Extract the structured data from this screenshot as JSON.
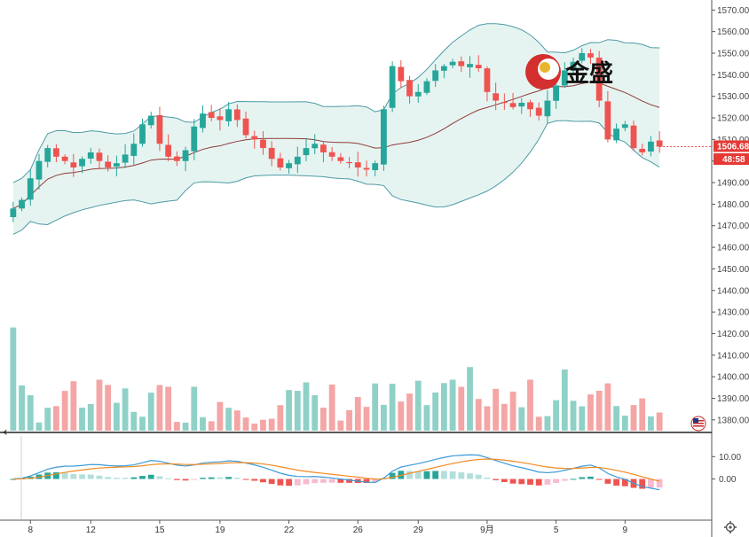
{
  "watermark": {
    "text": "金盛"
  },
  "chart_data": {
    "type": "candlestick",
    "price_axis": {
      "ticks": [
        "1570.00",
        "1560.00",
        "1550.00",
        "1540.00",
        "1530.00",
        "1520.00",
        "1510.00",
        "1500.00",
        "1490.00",
        "1480.00",
        "1470.00",
        "1460.00",
        "1450.00",
        "1440.00",
        "1430.00",
        "1420.00",
        "1410.00",
        "1400.00",
        "1390.00",
        "1380.00"
      ],
      "range": [
        1375,
        1573
      ]
    },
    "macd_axis": {
      "ticks": [
        "10.00",
        "0.00"
      ],
      "range": [
        -18,
        20
      ]
    },
    "x_ticks": [
      {
        "label": "8",
        "index": 2
      },
      {
        "label": "12",
        "index": 9
      },
      {
        "label": "15",
        "index": 17
      },
      {
        "label": "19",
        "index": 24
      },
      {
        "label": "22",
        "index": 32
      },
      {
        "label": "26",
        "index": 40
      },
      {
        "label": "29",
        "index": 47
      },
      {
        "label": "9月",
        "index": 55
      },
      {
        "label": "5",
        "index": 63
      },
      {
        "label": "9",
        "index": 71
      }
    ],
    "last_price": {
      "value": "1506.68",
      "countdown": "48:58",
      "color": "#e53935"
    },
    "colors": {
      "up": "#26a69a",
      "down": "#ef5350",
      "ma": "#8d3b3b",
      "band": "#4d9aa6",
      "band_fill": "#e6f4f1",
      "vol_up": "#8fd1c7",
      "vol_down": "#f4a5a5",
      "macd": "#3a9ad9",
      "signal": "#f2891f"
    },
    "icons": {
      "flag": "us-flag-icon",
      "settings": "gear-icon"
    },
    "close": [
      1478,
      1482,
      1492,
      1500,
      1506,
      1502,
      1500,
      1497,
      1501,
      1504,
      1500,
      1497,
      1499,
      1503,
      1508,
      1517,
      1521,
      1508,
      1502,
      1500,
      1505,
      1516,
      1522,
      1520,
      1519,
      1524,
      1519,
      1512,
      1510,
      1506,
      1501,
      1497,
      1499,
      1502,
      1506,
      1508,
      1504,
      1502,
      1500,
      1499,
      1497,
      1496,
      1499,
      1524,
      1544,
      1537,
      1530,
      1532,
      1537,
      1542,
      1544,
      1546,
      1544,
      1545,
      1543,
      1532,
      1528,
      1527,
      1525,
      1527,
      1524,
      1521,
      1528,
      1535,
      1542,
      1546,
      1550,
      1548,
      1528,
      1510,
      1515,
      1517,
      1506,
      1504,
      1509,
      1506.68
    ]
  }
}
